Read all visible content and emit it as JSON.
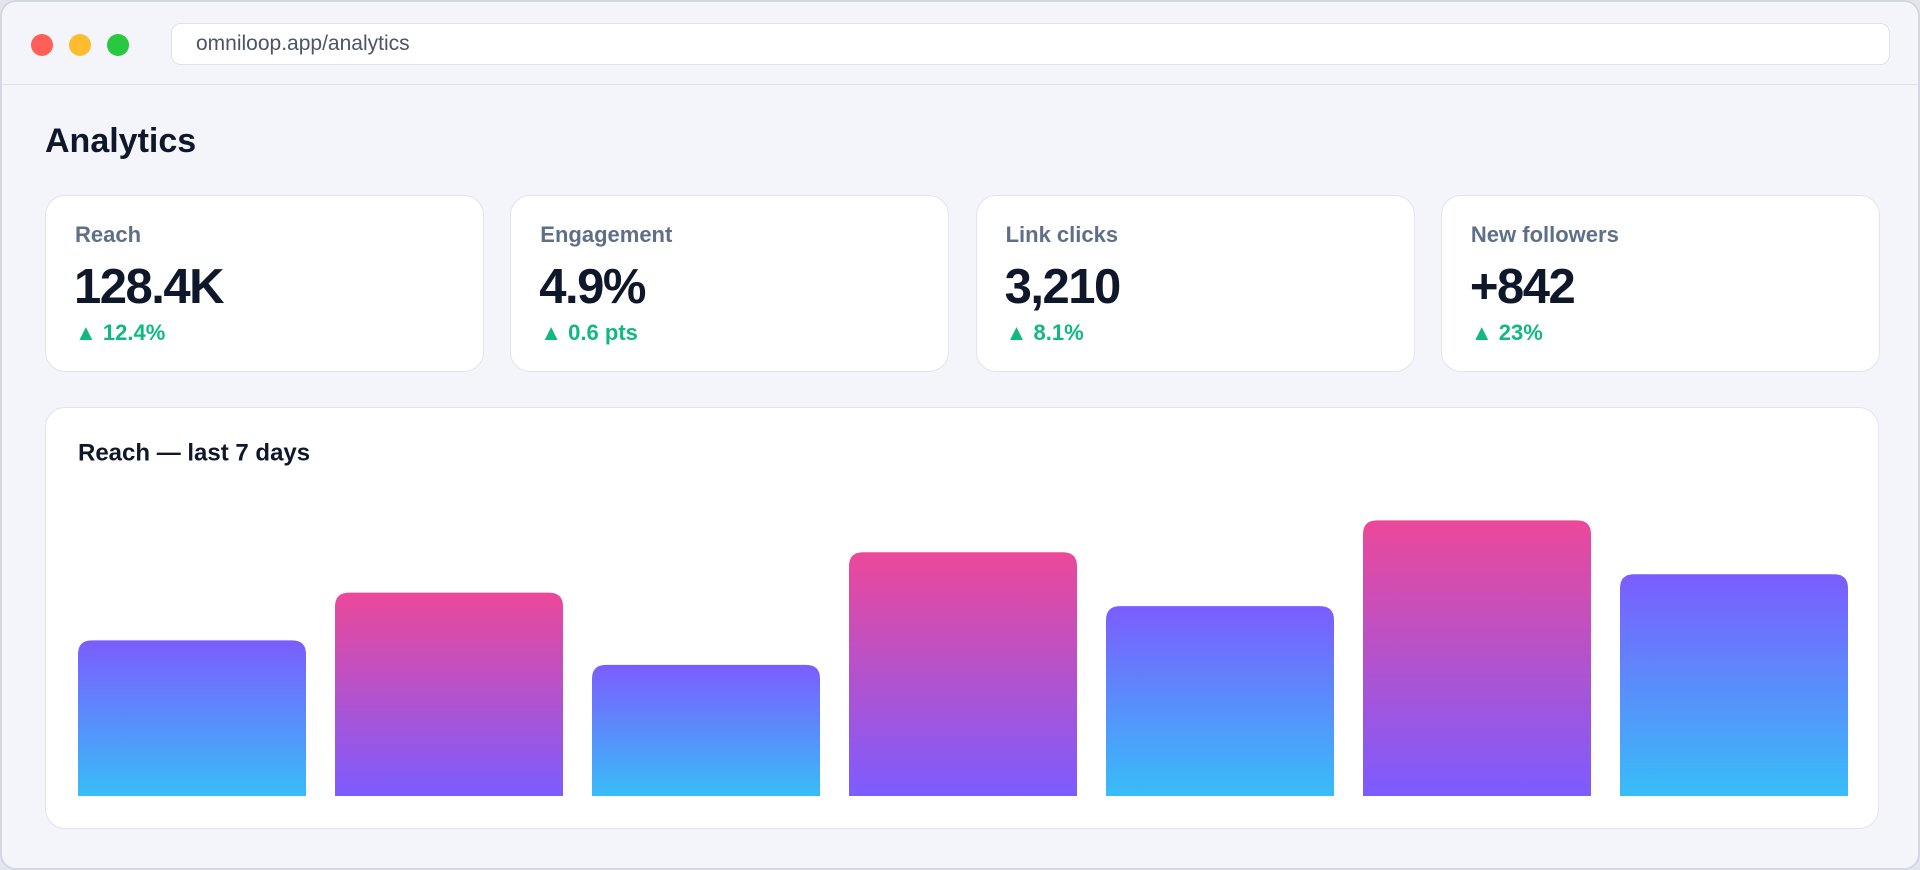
{
  "browser": {
    "url": "omniloop.app/analytics"
  },
  "page": {
    "title": "Analytics"
  },
  "kpis": [
    {
      "label": "Reach",
      "value": "128.4K",
      "delta": "▲ 12.4%"
    },
    {
      "label": "Engagement",
      "value": "4.9%",
      "delta": "▲ 0.6 pts"
    },
    {
      "label": "Link clicks",
      "value": "3,210",
      "delta": "▲ 8.1%"
    },
    {
      "label": "New followers",
      "value": "+842",
      "delta": "▲ 23%"
    }
  ],
  "chart_data": {
    "type": "bar",
    "title": "Reach — last 7 days",
    "categories": [
      null,
      null,
      null,
      null,
      null,
      null,
      null
    ],
    "values": [
      127,
      166,
      107,
      199,
      155,
      225,
      181
    ],
    "ylim": [
      0,
      240
    ],
    "colors": [
      [
        "#7c5cff",
        "#38bdf8"
      ],
      [
        "#ec4899",
        "#7c5cff"
      ],
      [
        "#7c5cff",
        "#38bdf8"
      ],
      [
        "#ec4899",
        "#7c5cff"
      ],
      [
        "#7c5cff",
        "#38bdf8"
      ],
      [
        "#ec4899",
        "#7c5cff"
      ],
      [
        "#7c5cff",
        "#38bdf8"
      ]
    ]
  }
}
